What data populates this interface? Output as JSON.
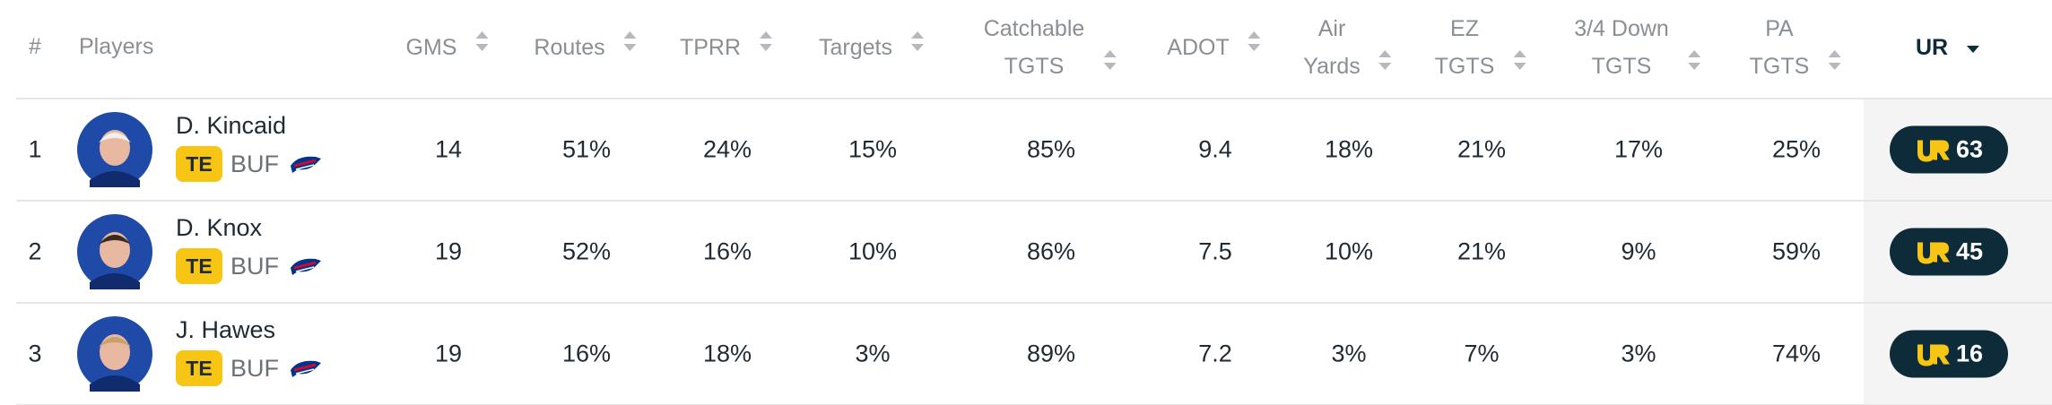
{
  "header": {
    "rank": "#",
    "player": "Players",
    "columns": [
      [
        "GMS"
      ],
      [
        "Routes"
      ],
      [
        "TPRR"
      ],
      [
        "Targets"
      ],
      [
        "Catchable",
        "TGTS"
      ],
      [
        "ADOT"
      ],
      [
        "Air",
        "Yards"
      ],
      [
        "EZ",
        "TGTS"
      ],
      [
        "3/4 Down",
        "TGTS"
      ],
      [
        "PA",
        "TGTS"
      ],
      [
        "UR"
      ]
    ]
  },
  "rows": [
    {
      "rank": "1",
      "name": "D. Kincaid",
      "position": "TE",
      "team": "BUF",
      "stats": [
        "14",
        "51%",
        "24%",
        "15%",
        "85%",
        "9.4",
        "18%",
        "21%",
        "17%",
        "25%"
      ],
      "ur": "63"
    },
    {
      "rank": "2",
      "name": "D. Knox",
      "position": "TE",
      "team": "BUF",
      "stats": [
        "19",
        "52%",
        "16%",
        "10%",
        "86%",
        "7.5",
        "10%",
        "21%",
        "9%",
        "59%"
      ],
      "ur": "45"
    },
    {
      "rank": "3",
      "name": "J. Hawes",
      "position": "TE",
      "team": "BUF",
      "stats": [
        "19",
        "16%",
        "18%",
        "3%",
        "89%",
        "7.2",
        "3%",
        "7%",
        "3%",
        "74%"
      ],
      "ur": "16"
    }
  ]
}
